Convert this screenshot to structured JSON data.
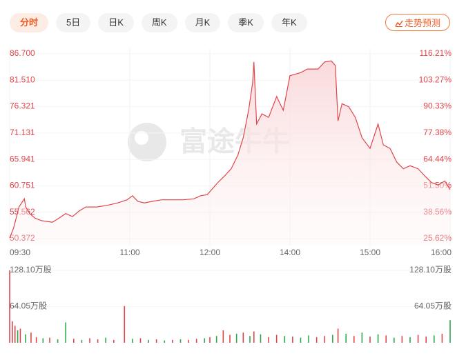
{
  "tabs": [
    "分时",
    "5日",
    "日K",
    "周K",
    "月K",
    "季K",
    "年K"
  ],
  "forecast_button": "走势预测",
  "watermark": "富途牛牛",
  "chart_data": [
    {
      "type": "line",
      "color": "#e0454a",
      "x": [
        0,
        3,
        7,
        11,
        12,
        15,
        19,
        24,
        32,
        37,
        42,
        47,
        52,
        57,
        65,
        73,
        81,
        88,
        92,
        96,
        101,
        107,
        114,
        122,
        130,
        138,
        143,
        148,
        150,
        156,
        161,
        166,
        171,
        175,
        179,
        182,
        183,
        185,
        189,
        194,
        200,
        205,
        210,
        218,
        223,
        231,
        236,
        241,
        244,
        246,
        249,
        254,
        259,
        264,
        270,
        276,
        280,
        285,
        290,
        295,
        300,
        306,
        311,
        316,
        321,
        326,
        330
      ],
      "values": [
        50.5,
        52.5,
        56.6,
        58.2,
        56.6,
        55.3,
        54.4,
        53.9,
        53.6,
        54.4,
        55.3,
        54.7,
        55.8,
        56.6,
        56.6,
        56.9,
        57.4,
        58.0,
        58.8,
        57.7,
        57.4,
        57.7,
        58.0,
        58.0,
        58.0,
        58.2,
        58.8,
        59.0,
        59.6,
        61.4,
        62.7,
        64.1,
        66.8,
        70.2,
        75.6,
        81.0,
        85.1,
        72.9,
        74.9,
        74.2,
        78.3,
        75.6,
        82.4,
        83.0,
        83.7,
        83.7,
        85.1,
        85.3,
        84.4,
        73.5,
        76.9,
        76.3,
        74.2,
        70.2,
        68.1,
        72.9,
        68.8,
        68.1,
        65.4,
        64.1,
        64.7,
        64.1,
        62.7,
        61.4,
        60.9,
        61.7,
        60.0
      ],
      "xlim": [
        0,
        330
      ],
      "xticks": [
        {
          "value": 0,
          "label": "09:30"
        },
        {
          "value": 90,
          "label": "11:00"
        },
        {
          "value": 150,
          "label": "12:00"
        },
        {
          "value": 210,
          "label": "14:00"
        },
        {
          "value": 270,
          "label": "15:00"
        },
        {
          "value": 330,
          "label": "16:00"
        }
      ],
      "ylim": [
        50.372,
        86.7
      ],
      "yticks": [
        50.372,
        55.562,
        60.751,
        65.941,
        71.131,
        76.321,
        {
          "value": 81.51,
          "label": "81.510"
        },
        {
          "value": 86.7,
          "label": "86.700"
        }
      ],
      "y2lim": [
        25.62,
        116.21
      ],
      "y2ticks": [
        {
          "value": 25.62,
          "label": "25.62%"
        },
        {
          "value": 38.56,
          "label": "38.56%"
        },
        {
          "value": 51.5,
          "label": "51.50%"
        },
        {
          "value": 64.44,
          "label": "64.44%"
        },
        {
          "value": 77.38,
          "label": "77.38%"
        },
        {
          "value": 90.33,
          "label": "90.33%"
        },
        {
          "value": 103.27,
          "label": "103.27%"
        },
        {
          "value": 116.21,
          "label": "116.21%"
        }
      ]
    },
    {
      "type": "bar",
      "x": [
        0,
        2,
        4,
        6,
        8,
        12,
        16,
        20,
        25,
        30,
        36,
        42,
        48,
        54,
        60,
        66,
        72,
        78,
        86,
        92,
        98,
        104,
        110,
        116,
        122,
        128,
        134,
        140,
        146,
        150,
        155,
        160,
        165,
        170,
        175,
        180,
        183,
        188,
        194,
        200,
        206,
        212,
        218,
        224,
        230,
        236,
        242,
        246,
        252,
        258,
        264,
        270,
        276,
        282,
        288,
        294,
        300,
        306,
        312,
        318,
        324,
        330
      ],
      "values": [
        128.1,
        38,
        30,
        22,
        25,
        15,
        18,
        10,
        8,
        9,
        6,
        36,
        7,
        5,
        8,
        6,
        9,
        5,
        65,
        7,
        8,
        5,
        6,
        4,
        5,
        6,
        5,
        7,
        8,
        10,
        12,
        22,
        14,
        16,
        18,
        12,
        20,
        15,
        10,
        14,
        12,
        11,
        9,
        13,
        10,
        12,
        14,
        25,
        16,
        12,
        18,
        11,
        15,
        13,
        9,
        12,
        10,
        14,
        11,
        13,
        16,
        40
      ],
      "colors": [
        "#e0454a",
        "#e0454a",
        "#e0454a",
        "#2aa84a",
        "#e0454a",
        "#2aa84a",
        "#e0454a",
        "#e0454a",
        "#2aa84a",
        "#e0454a",
        "#2aa84a",
        "#2aa84a",
        "#e0454a",
        "#2aa84a",
        "#e0454a",
        "#e0454a",
        "#2aa84a",
        "#e0454a",
        "#e0454a",
        "#2aa84a",
        "#e0454a",
        "#2aa84a",
        "#e0454a",
        "#2aa84a",
        "#e0454a",
        "#2aa84a",
        "#e0454a",
        "#e0454a",
        "#2aa84a",
        "#e0454a",
        "#2aa84a",
        "#e0454a",
        "#e0454a",
        "#2aa84a",
        "#e0454a",
        "#2aa84a",
        "#e0454a",
        "#2aa84a",
        "#e0454a",
        "#e0454a",
        "#2aa84a",
        "#e0454a",
        "#2aa84a",
        "#2aa84a",
        "#e0454a",
        "#e0454a",
        "#2aa84a",
        "#e0454a",
        "#2aa84a",
        "#e0454a",
        "#2aa84a",
        "#e0454a",
        "#2aa84a",
        "#e0454a",
        "#2aa84a",
        "#e0454a",
        "#2aa84a",
        "#e0454a",
        "#e0454a",
        "#2aa84a",
        "#e0454a",
        "#2aa84a"
      ],
      "xlim": [
        0,
        330
      ],
      "ylim": [
        0,
        128.1
      ],
      "yticks": [
        {
          "value": 64.05,
          "label": "64.05万股"
        },
        {
          "value": 128.1,
          "label": "128.10万股"
        }
      ],
      "y2lim": [
        0,
        128.1
      ],
      "y2ticks": [
        {
          "value": 64.05,
          "label": "64.05万股"
        },
        {
          "value": 128.1,
          "label": "128.10万股"
        }
      ]
    }
  ]
}
